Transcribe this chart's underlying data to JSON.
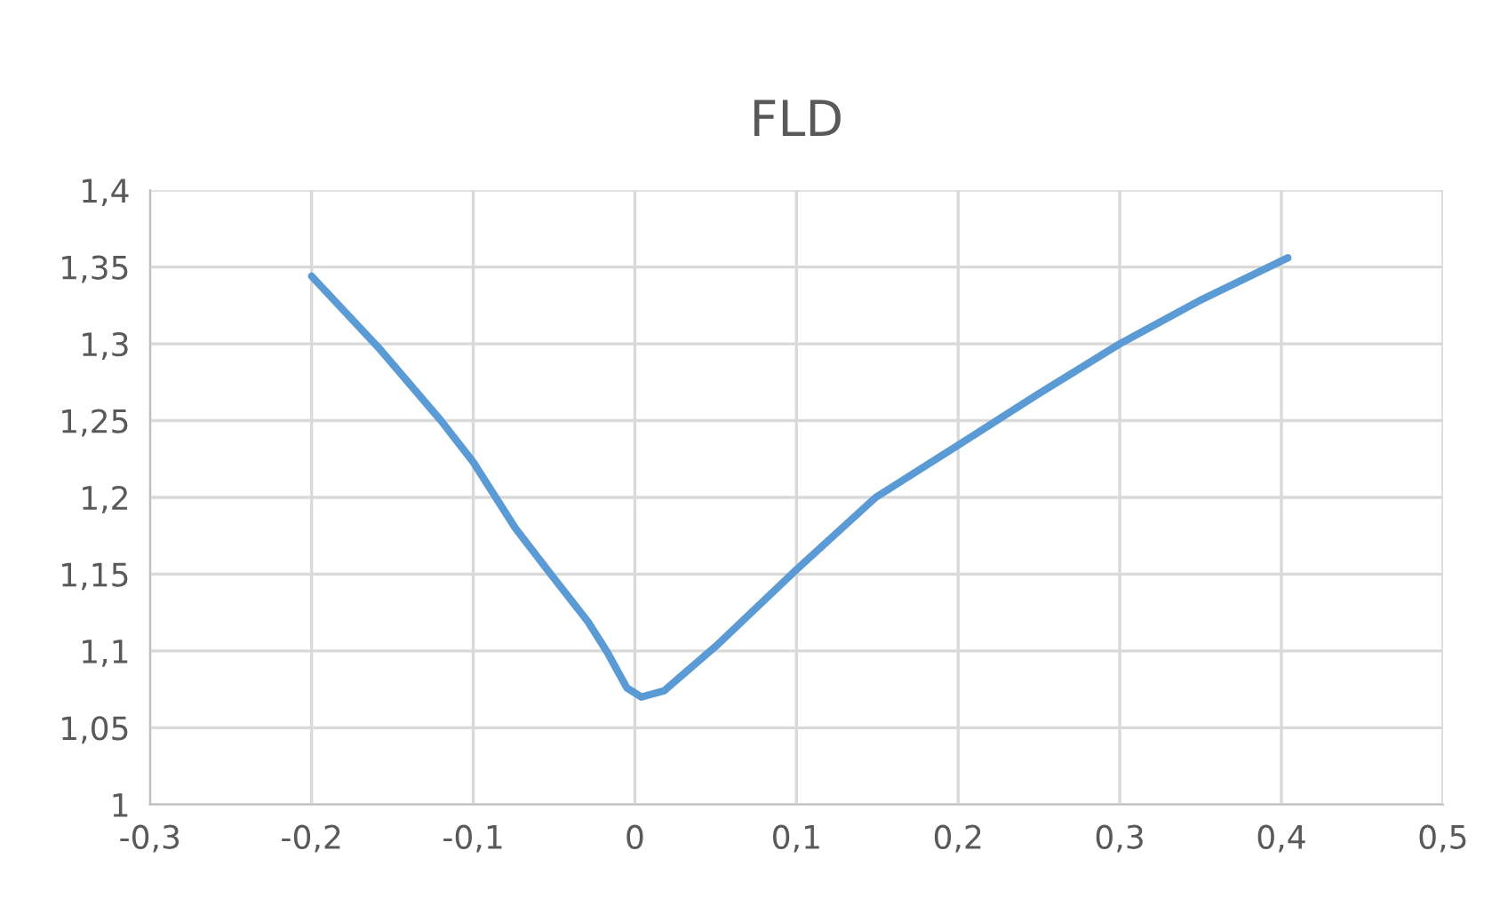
{
  "chart_data": {
    "type": "line",
    "title": "FLD",
    "grid": true,
    "line_style": "solid",
    "marker": "none",
    "x": [
      -0.2,
      -0.159,
      -0.12,
      -0.1,
      -0.074,
      -0.052,
      -0.029,
      -0.017,
      -0.005,
      0.004,
      0.018,
      0.05,
      0.1,
      0.149,
      0.2,
      0.249,
      0.3,
      0.351,
      0.404
    ],
    "series": [
      {
        "color": "#5b9bd5",
        "values": [
          1.344,
          1.298,
          1.25,
          1.223,
          1.18,
          1.15,
          1.119,
          1.099,
          1.076,
          1.07,
          1.074,
          1.103,
          1.153,
          1.2,
          1.234,
          1.267,
          1.3,
          1.329,
          1.356
        ]
      }
    ],
    "xlim": [
      -0.3,
      0.5
    ],
    "xticks": [
      {
        "value": -0.3,
        "label": "-0,3"
      },
      {
        "value": -0.2,
        "label": "-0,2"
      },
      {
        "value": -0.1,
        "label": "-0,1"
      },
      0,
      {
        "value": 0.1,
        "label": "0,1"
      },
      {
        "value": 0.2,
        "label": "0,2"
      },
      {
        "value": 0.3,
        "label": "0,3"
      },
      {
        "value": 0.4,
        "label": "0,4"
      },
      {
        "value": 0.5,
        "label": "0,5"
      }
    ],
    "ylim": [
      1,
      1.4
    ],
    "yticks": [
      1,
      {
        "value": 1.05,
        "label": "1,05"
      },
      {
        "value": 1.1,
        "label": "1,1"
      },
      {
        "value": 1.15,
        "label": "1,15"
      },
      {
        "value": 1.2,
        "label": "1,2"
      },
      {
        "value": 1.25,
        "label": "1,25"
      },
      {
        "value": 1.3,
        "label": "1,3"
      },
      {
        "value": 1.35,
        "label": "1,35"
      },
      {
        "value": 1.4,
        "label": "1,4"
      }
    ]
  }
}
